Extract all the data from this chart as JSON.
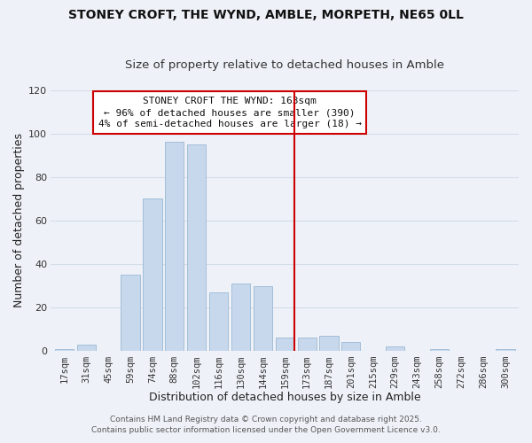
{
  "title": "STONEY CROFT, THE WYND, AMBLE, MORPETH, NE65 0LL",
  "subtitle": "Size of property relative to detached houses in Amble",
  "xlabel": "Distribution of detached houses by size in Amble",
  "ylabel": "Number of detached properties",
  "bar_color": "#c8d8ec",
  "bar_edge_color": "#9ab8d4",
  "grid_color": "#d4dce8",
  "background_color": "#eef2f8",
  "bin_labels": [
    "17sqm",
    "31sqm",
    "45sqm",
    "59sqm",
    "74sqm",
    "88sqm",
    "102sqm",
    "116sqm",
    "130sqm",
    "144sqm",
    "159sqm",
    "173sqm",
    "187sqm",
    "201sqm",
    "215sqm",
    "229sqm",
    "243sqm",
    "258sqm",
    "272sqm",
    "286sqm",
    "300sqm"
  ],
  "bar_heights": [
    1,
    3,
    0,
    35,
    70,
    96,
    95,
    27,
    31,
    30,
    6,
    6,
    7,
    4,
    0,
    2,
    0,
    1,
    0,
    0,
    1
  ],
  "vline_index": 10,
  "vline_color": "#cc0000",
  "ylim": [
    0,
    120
  ],
  "yticks": [
    0,
    20,
    40,
    60,
    80,
    100,
    120
  ],
  "annotation_title": "STONEY CROFT THE WYND: 163sqm",
  "annotation_line1": "← 96% of detached houses are smaller (390)",
  "annotation_line2": "4% of semi-detached houses are larger (18) →",
  "annotation_box_color": "#ffffff",
  "annotation_border_color": "#cc0000",
  "footer1": "Contains HM Land Registry data © Crown copyright and database right 2025.",
  "footer2": "Contains public sector information licensed under the Open Government Licence v3.0.",
  "title_fontsize": 10,
  "subtitle_fontsize": 9.5,
  "axis_label_fontsize": 9,
  "tick_fontsize": 7.5,
  "annotation_fontsize": 8,
  "footer_fontsize": 6.5
}
